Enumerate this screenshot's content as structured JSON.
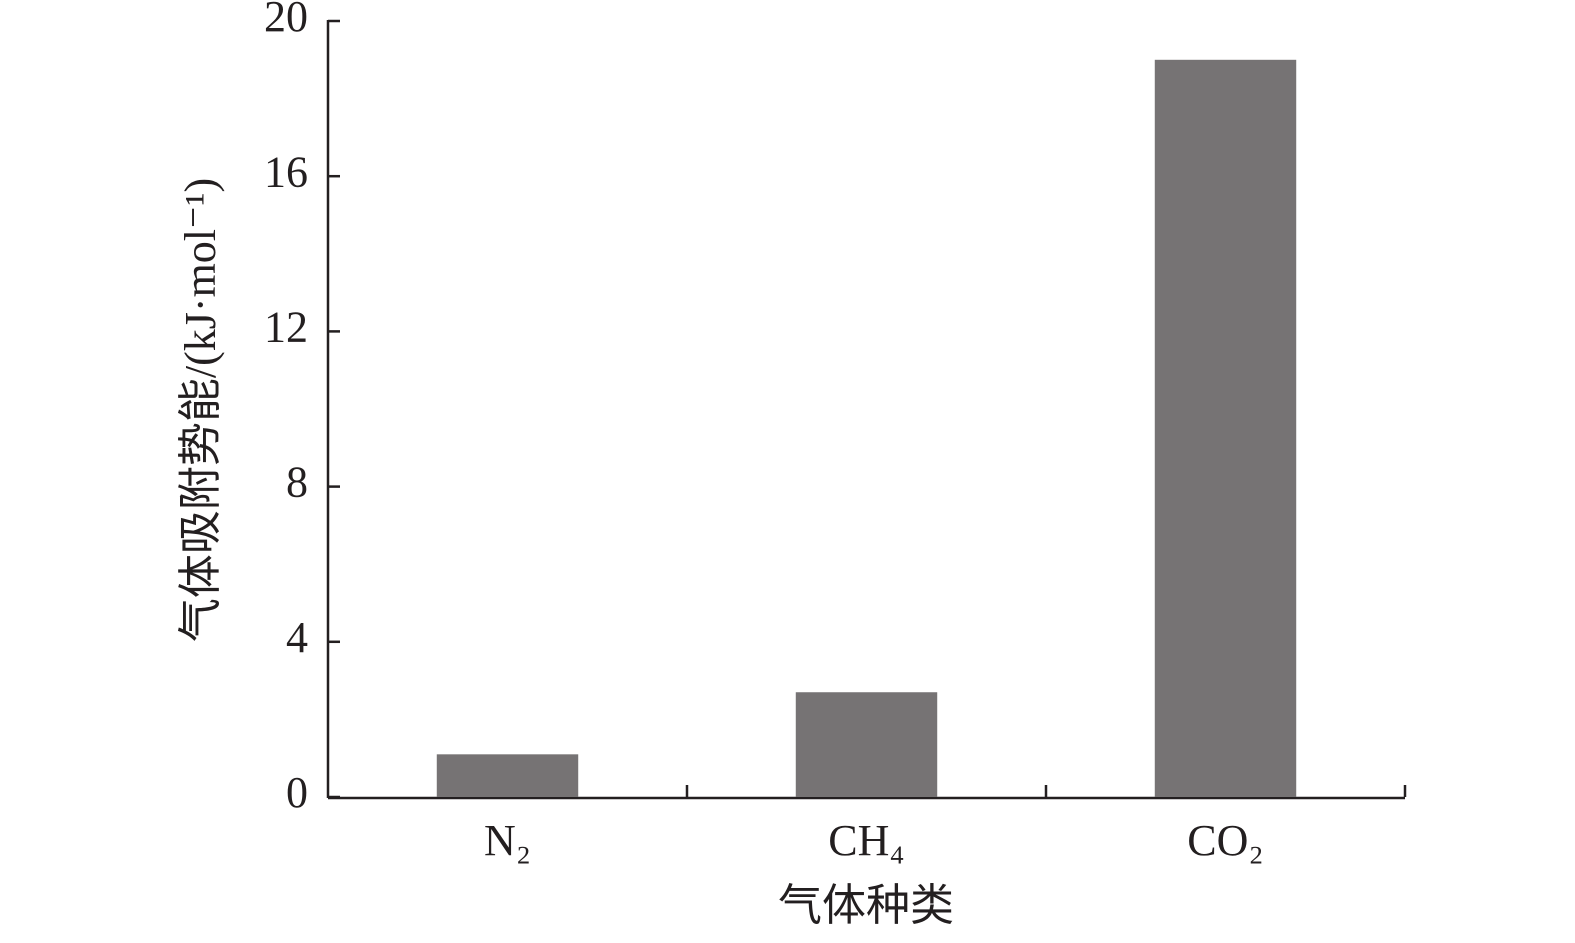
{
  "chart_data": {
    "type": "bar",
    "categories": [
      "N₂",
      "CH₄",
      "CO₂"
    ],
    "values": [
      1.1,
      2.7,
      19.0
    ],
    "color": "#767374",
    "xlabel": "气体种类",
    "ylabel": "气体吸附势能/(kJ·mol⁻¹)",
    "ylim": [
      0,
      20
    ],
    "yticks": [
      0,
      4,
      8,
      12,
      16,
      20
    ],
    "grid": false
  }
}
